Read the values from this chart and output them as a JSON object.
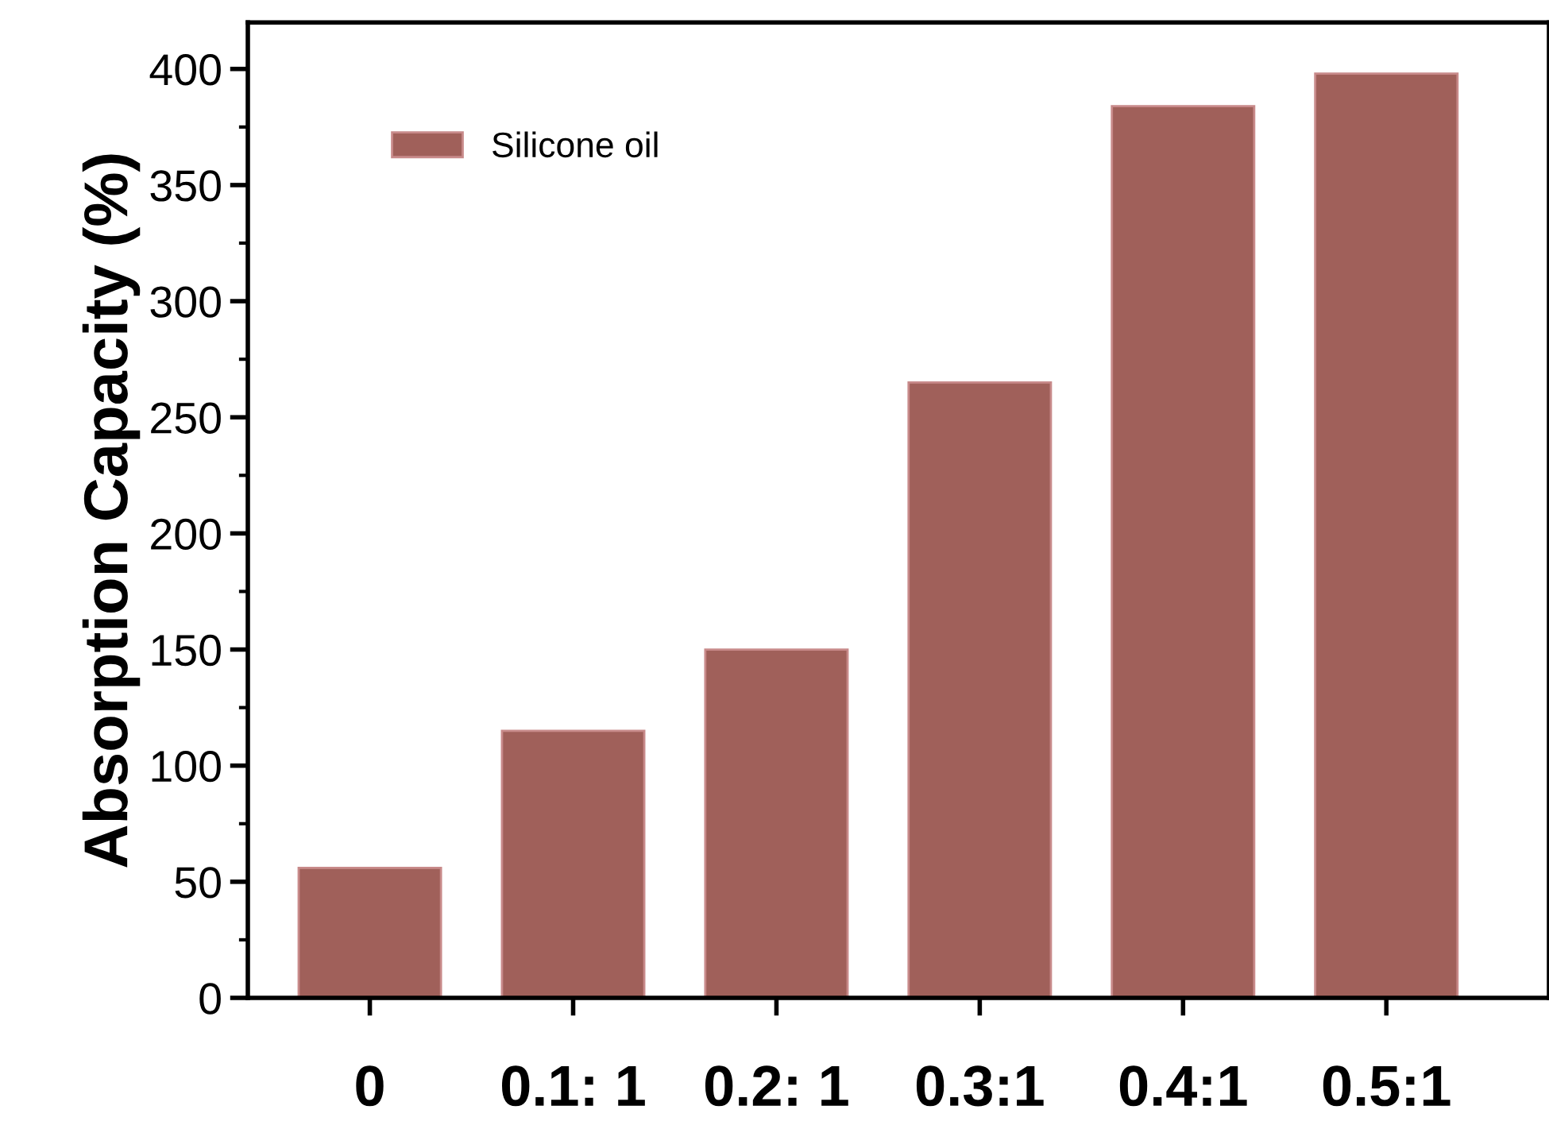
{
  "chart_data": {
    "type": "bar",
    "ylabel": "Absorption Capacity (%)",
    "categories": [
      "0",
      "0.1: 1",
      "0.2: 1",
      "0.3:1",
      "0.4:1",
      "0.5:1"
    ],
    "series": [
      {
        "name": "Silicone oil",
        "color": "#a0605a",
        "values": [
          56,
          115,
          150,
          265,
          384,
          398
        ]
      }
    ],
    "ylim": [
      0,
      420
    ],
    "yticks": [
      0,
      50,
      100,
      150,
      200,
      250,
      300,
      350,
      400
    ],
    "grid": false,
    "legend": "top left"
  }
}
